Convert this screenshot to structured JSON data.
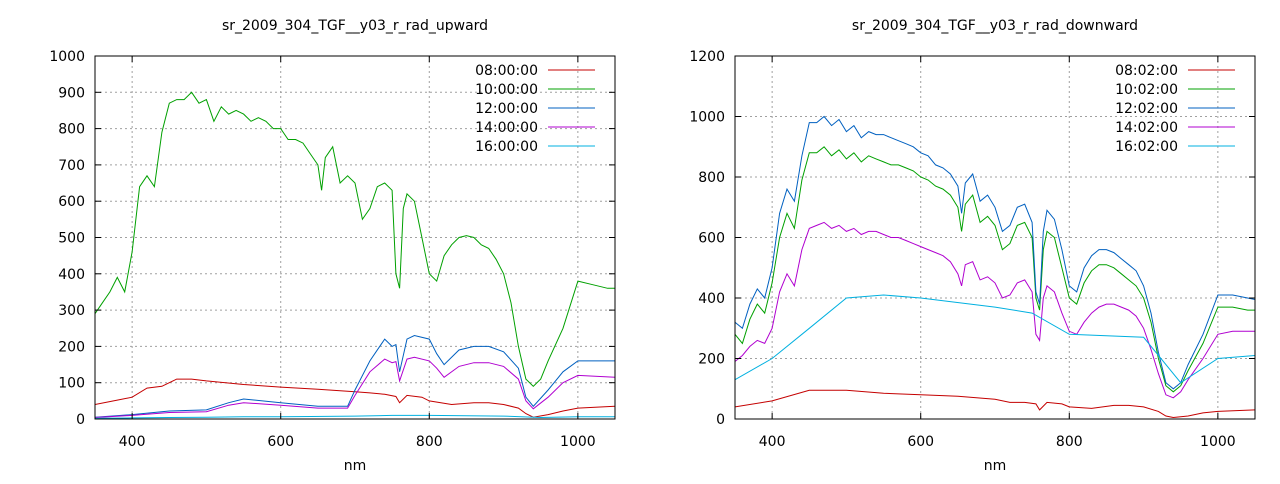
{
  "chart_data": [
    {
      "type": "line",
      "title": "sr_2009_304_TGF__y03_r_rad_upward",
      "xlabel": "nm",
      "ylabel": "",
      "xlim": [
        350,
        1050
      ],
      "ylim": [
        0,
        1000
      ],
      "xticks": [
        400,
        600,
        800,
        1000
      ],
      "yticks": [
        0,
        100,
        200,
        300,
        400,
        500,
        600,
        700,
        800,
        900,
        1000
      ],
      "grid": true,
      "legend_position": "top-right",
      "series": [
        {
          "name": "08:00:00",
          "color": "#c40000",
          "x": [
            350,
            380,
            400,
            420,
            440,
            460,
            480,
            500,
            550,
            600,
            650,
            700,
            720,
            740,
            755,
            760,
            770,
            790,
            800,
            830,
            860,
            880,
            900,
            920,
            930,
            940,
            960,
            980,
            1000,
            1050
          ],
          "y": [
            40,
            52,
            60,
            85,
            90,
            110,
            110,
            105,
            95,
            88,
            82,
            75,
            72,
            68,
            62,
            45,
            65,
            60,
            50,
            40,
            45,
            45,
            40,
            30,
            15,
            5,
            12,
            22,
            30,
            35
          ]
        },
        {
          "name": "10:00:00",
          "color": "#00a000",
          "x": [
            350,
            360,
            370,
            380,
            390,
            400,
            410,
            420,
            430,
            440,
            450,
            460,
            470,
            480,
            490,
            500,
            510,
            520,
            530,
            540,
            550,
            560,
            570,
            580,
            590,
            600,
            610,
            620,
            630,
            640,
            650,
            655,
            660,
            670,
            680,
            690,
            700,
            710,
            720,
            730,
            740,
            750,
            755,
            760,
            765,
            770,
            780,
            790,
            800,
            810,
            820,
            830,
            840,
            850,
            860,
            870,
            880,
            890,
            900,
            910,
            920,
            930,
            940,
            950,
            960,
            980,
            1000,
            1020,
            1040,
            1050
          ],
          "y": [
            290,
            320,
            350,
            390,
            350,
            460,
            640,
            670,
            640,
            790,
            870,
            880,
            880,
            900,
            870,
            880,
            820,
            860,
            840,
            850,
            840,
            820,
            830,
            820,
            800,
            800,
            770,
            770,
            760,
            730,
            700,
            630,
            720,
            750,
            650,
            670,
            650,
            550,
            580,
            640,
            650,
            630,
            400,
            360,
            580,
            620,
            600,
            500,
            400,
            380,
            450,
            480,
            500,
            505,
            500,
            480,
            470,
            440,
            400,
            320,
            200,
            110,
            90,
            110,
            160,
            250,
            380,
            370,
            360,
            360
          ]
        },
        {
          "name": "12:00:00",
          "color": "#0060c0",
          "x": [
            350,
            400,
            450,
            500,
            530,
            550,
            600,
            650,
            690,
            700,
            720,
            740,
            750,
            755,
            760,
            770,
            780,
            800,
            810,
            820,
            840,
            860,
            880,
            900,
            920,
            930,
            940,
            960,
            980,
            1000,
            1050
          ],
          "y": [
            5,
            12,
            22,
            25,
            45,
            55,
            45,
            35,
            35,
            80,
            160,
            220,
            200,
            205,
            130,
            220,
            230,
            220,
            180,
            150,
            190,
            200,
            200,
            185,
            140,
            60,
            35,
            80,
            130,
            160,
            160
          ]
        },
        {
          "name": "14:00:00",
          "color": "#b000d0",
          "x": [
            350,
            400,
            450,
            500,
            530,
            550,
            600,
            650,
            690,
            700,
            720,
            740,
            750,
            755,
            760,
            770,
            780,
            800,
            810,
            820,
            840,
            860,
            880,
            900,
            920,
            930,
            940,
            960,
            980,
            1000,
            1050
          ],
          "y": [
            4,
            10,
            18,
            20,
            38,
            45,
            38,
            30,
            30,
            65,
            130,
            165,
            155,
            158,
            105,
            165,
            170,
            160,
            140,
            115,
            145,
            155,
            155,
            145,
            110,
            50,
            28,
            60,
            100,
            120,
            115
          ]
        },
        {
          "name": "16:00:00",
          "color": "#00b0e0",
          "x": [
            350,
            400,
            450,
            500,
            550,
            600,
            700,
            750,
            800,
            900,
            950,
            1000,
            1050
          ],
          "y": [
            2,
            3,
            4,
            5,
            6,
            6,
            8,
            10,
            10,
            8,
            4,
            6,
            6
          ]
        }
      ]
    },
    {
      "type": "line",
      "title": "sr_2009_304_TGF__y03_r_rad_downward",
      "xlabel": "nm",
      "ylabel": "",
      "xlim": [
        350,
        1050
      ],
      "ylim": [
        0,
        1200
      ],
      "xticks": [
        400,
        600,
        800,
        1000
      ],
      "yticks": [
        0,
        200,
        400,
        600,
        800,
        1000,
        1200
      ],
      "grid": true,
      "legend_position": "top-right",
      "series": [
        {
          "name": "08:02:00",
          "color": "#c40000",
          "x": [
            350,
            400,
            450,
            500,
            550,
            600,
            650,
            700,
            720,
            740,
            755,
            760,
            770,
            790,
            800,
            830,
            860,
            880,
            900,
            920,
            930,
            940,
            960,
            980,
            1000,
            1050
          ],
          "y": [
            40,
            60,
            95,
            95,
            85,
            80,
            75,
            65,
            55,
            55,
            50,
            30,
            55,
            50,
            40,
            35,
            45,
            45,
            40,
            25,
            10,
            5,
            10,
            20,
            25,
            30
          ]
        },
        {
          "name": "10:02:00",
          "color": "#00a000",
          "x": [
            350,
            360,
            370,
            380,
            390,
            400,
            410,
            420,
            430,
            440,
            450,
            460,
            470,
            480,
            490,
            500,
            510,
            520,
            530,
            540,
            550,
            560,
            570,
            580,
            590,
            600,
            610,
            620,
            630,
            640,
            650,
            655,
            660,
            670,
            680,
            690,
            700,
            710,
            720,
            730,
            740,
            750,
            755,
            760,
            765,
            770,
            780,
            790,
            800,
            810,
            820,
            830,
            840,
            850,
            860,
            870,
            880,
            890,
            900,
            910,
            920,
            930,
            940,
            950,
            960,
            980,
            1000,
            1020,
            1040,
            1050
          ],
          "y": [
            280,
            250,
            330,
            380,
            350,
            450,
            600,
            680,
            630,
            790,
            880,
            880,
            900,
            870,
            890,
            860,
            880,
            850,
            870,
            860,
            850,
            840,
            840,
            830,
            820,
            800,
            790,
            770,
            760,
            740,
            700,
            620,
            710,
            740,
            650,
            670,
            640,
            560,
            580,
            640,
            650,
            600,
            400,
            360,
            560,
            620,
            600,
            500,
            400,
            380,
            450,
            490,
            510,
            510,
            500,
            480,
            460,
            440,
            400,
            320,
            200,
            110,
            90,
            110,
            160,
            250,
            370,
            370,
            360,
            360
          ]
        },
        {
          "name": "12:02:00",
          "color": "#0060c0",
          "x": [
            350,
            360,
            370,
            380,
            390,
            400,
            410,
            420,
            430,
            440,
            450,
            460,
            470,
            480,
            490,
            500,
            510,
            520,
            530,
            540,
            550,
            560,
            570,
            580,
            590,
            600,
            610,
            620,
            630,
            640,
            650,
            655,
            660,
            670,
            680,
            690,
            700,
            710,
            720,
            730,
            740,
            750,
            755,
            760,
            765,
            770,
            780,
            790,
            800,
            810,
            820,
            830,
            840,
            850,
            860,
            870,
            880,
            890,
            900,
            910,
            920,
            930,
            940,
            950,
            960,
            980,
            1000,
            1020,
            1040,
            1050
          ],
          "y": [
            320,
            300,
            380,
            430,
            400,
            500,
            680,
            760,
            720,
            870,
            980,
            980,
            1000,
            970,
            990,
            950,
            970,
            930,
            950,
            940,
            940,
            930,
            920,
            910,
            900,
            880,
            870,
            840,
            830,
            810,
            770,
            680,
            780,
            810,
            720,
            740,
            700,
            620,
            640,
            700,
            710,
            650,
            420,
            380,
            620,
            690,
            660,
            560,
            440,
            420,
            500,
            540,
            560,
            560,
            550,
            530,
            510,
            490,
            440,
            350,
            220,
            120,
            100,
            120,
            180,
            280,
            410,
            410,
            400,
            395
          ]
        },
        {
          "name": "14:02:00",
          "color": "#b000d0",
          "x": [
            350,
            360,
            370,
            380,
            390,
            400,
            410,
            420,
            430,
            440,
            450,
            460,
            470,
            480,
            490,
            500,
            510,
            520,
            530,
            540,
            550,
            560,
            570,
            580,
            590,
            600,
            610,
            620,
            630,
            640,
            650,
            655,
            660,
            670,
            680,
            690,
            700,
            710,
            720,
            730,
            740,
            750,
            755,
            760,
            765,
            770,
            780,
            790,
            800,
            810,
            820,
            830,
            840,
            850,
            860,
            870,
            880,
            890,
            900,
            910,
            920,
            930,
            940,
            950,
            960,
            980,
            1000,
            1020,
            1040,
            1050
          ],
          "y": [
            190,
            210,
            240,
            260,
            250,
            300,
            420,
            480,
            440,
            560,
            630,
            640,
            650,
            630,
            640,
            620,
            630,
            610,
            620,
            620,
            610,
            600,
            600,
            590,
            580,
            570,
            560,
            550,
            540,
            520,
            480,
            440,
            510,
            520,
            460,
            470,
            450,
            400,
            410,
            450,
            460,
            420,
            280,
            260,
            400,
            440,
            420,
            350,
            290,
            280,
            320,
            350,
            370,
            380,
            380,
            370,
            360,
            340,
            300,
            230,
            150,
            80,
            70,
            90,
            130,
            200,
            280,
            290,
            290,
            290
          ]
        },
        {
          "name": "16:02:00",
          "color": "#00b0e0",
          "x": [
            350,
            400,
            450,
            500,
            550,
            600,
            700,
            750,
            800,
            900,
            950,
            1000,
            1050
          ],
          "y": [
            130,
            200,
            300,
            400,
            410,
            400,
            370,
            350,
            280,
            270,
            120,
            200,
            210
          ]
        }
      ]
    }
  ]
}
